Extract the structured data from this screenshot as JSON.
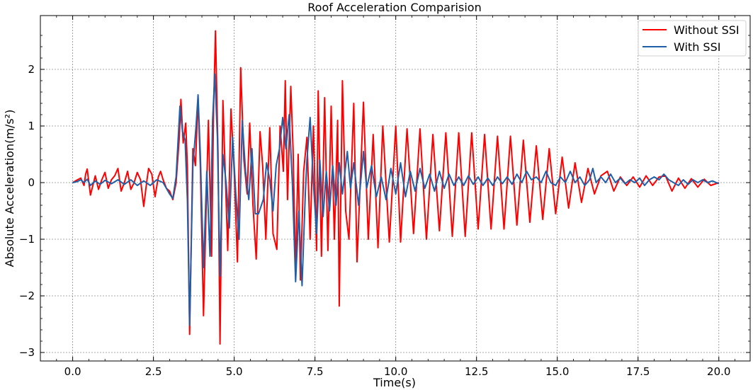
{
  "chart_data": {
    "type": "line",
    "title": "Roof Acceleration Comparision",
    "xlabel": "Time(s)",
    "ylabel": "Absolute Acceleration(m/s²)",
    "xlim": [
      -1.0,
      20.97
    ],
    "ylim": [
      -3.15,
      2.95
    ],
    "x_ticks": [
      0.0,
      2.5,
      5.0,
      7.5,
      10.0,
      12.5,
      15.0,
      17.5,
      20.0
    ],
    "x_tick_labels": [
      "0.0",
      "2.5",
      "5.0",
      "7.5",
      "10.0",
      "12.5",
      "15.0",
      "17.5",
      "20.0"
    ],
    "y_ticks": [
      -3,
      -2,
      -1,
      0,
      1,
      2
    ],
    "y_tick_labels": [
      "−3",
      "−2",
      "−1",
      "0",
      "1",
      "2"
    ],
    "grid": true,
    "legend_position": "top-right",
    "series": [
      {
        "name": "Without SSI",
        "color": "#ff0000",
        "points": [
          [
            0,
            0
          ],
          [
            0.15,
            0.05
          ],
          [
            0.25,
            0.08
          ],
          [
            0.35,
            -0.05
          ],
          [
            0.4,
            0.15
          ],
          [
            0.45,
            0.24
          ],
          [
            0.55,
            -0.22
          ],
          [
            0.7,
            0.12
          ],
          [
            0.8,
            -0.12
          ],
          [
            0.9,
            0.05
          ],
          [
            1.0,
            0.18
          ],
          [
            1.1,
            -0.1
          ],
          [
            1.2,
            0.05
          ],
          [
            1.3,
            0.12
          ],
          [
            1.4,
            0.25
          ],
          [
            1.5,
            -0.15
          ],
          [
            1.6,
            0.0
          ],
          [
            1.7,
            0.2
          ],
          [
            1.8,
            -0.12
          ],
          [
            1.9,
            0.0
          ],
          [
            2.0,
            0.18
          ],
          [
            2.1,
            0.05
          ],
          [
            2.2,
            -0.42
          ],
          [
            2.3,
            0.05
          ],
          [
            2.35,
            0.25
          ],
          [
            2.45,
            0.15
          ],
          [
            2.55,
            -0.25
          ],
          [
            2.65,
            0.1
          ],
          [
            2.72,
            0.2
          ],
          [
            2.8,
            0.05
          ],
          [
            2.9,
            -0.1
          ],
          [
            3.0,
            -0.15
          ],
          [
            3.1,
            -0.3
          ],
          [
            3.2,
            0.0
          ],
          [
            3.3,
            0.8
          ],
          [
            3.35,
            1.47
          ],
          [
            3.42,
            0.7
          ],
          [
            3.5,
            1.05
          ],
          [
            3.55,
            0.3
          ],
          [
            3.62,
            -2.68
          ],
          [
            3.72,
            0.6
          ],
          [
            3.8,
            0.3
          ],
          [
            3.88,
            1.5
          ],
          [
            3.95,
            0.3
          ],
          [
            4.05,
            -2.35
          ],
          [
            4.15,
            0.0
          ],
          [
            4.2,
            1.1
          ],
          [
            4.3,
            -1.3
          ],
          [
            4.36,
            1.3
          ],
          [
            4.42,
            2.68
          ],
          [
            4.5,
            0.5
          ],
          [
            4.56,
            -2.85
          ],
          [
            4.65,
            1.45
          ],
          [
            4.72,
            0.2
          ],
          [
            4.8,
            -1.2
          ],
          [
            4.9,
            1.3
          ],
          [
            5.0,
            0.2
          ],
          [
            5.1,
            -1.4
          ],
          [
            5.2,
            2.03
          ],
          [
            5.3,
            0.4
          ],
          [
            5.4,
            -0.2
          ],
          [
            5.48,
            1.05
          ],
          [
            5.58,
            -0.4
          ],
          [
            5.68,
            -1.35
          ],
          [
            5.8,
            0.9
          ],
          [
            5.88,
            0.3
          ],
          [
            5.98,
            -1.0
          ],
          [
            6.1,
            0.97
          ],
          [
            6.2,
            -0.9
          ],
          [
            6.32,
            -1.18
          ],
          [
            6.42,
            1.0
          ],
          [
            6.52,
            0.2
          ],
          [
            6.58,
            1.8
          ],
          [
            6.65,
            -0.3
          ],
          [
            6.75,
            1.7
          ],
          [
            6.82,
            0.6
          ],
          [
            6.9,
            -1.6
          ],
          [
            6.98,
            0.5
          ],
          [
            7.05,
            -1.72
          ],
          [
            7.15,
            0.2
          ],
          [
            7.25,
            0.8
          ],
          [
            7.35,
            -1.0
          ],
          [
            7.45,
            1.0
          ],
          [
            7.55,
            -1.2
          ],
          [
            7.6,
            1.62
          ],
          [
            7.7,
            -1.3
          ],
          [
            7.8,
            1.5
          ],
          [
            7.9,
            -1.2
          ],
          [
            8.0,
            1.35
          ],
          [
            8.1,
            -1.0
          ],
          [
            8.2,
            1.1
          ],
          [
            8.25,
            -2.18
          ],
          [
            8.35,
            1.8
          ],
          [
            8.45,
            -0.5
          ],
          [
            8.55,
            -1.0
          ],
          [
            8.7,
            1.4
          ],
          [
            8.8,
            -1.4
          ],
          [
            9.0,
            1.42
          ],
          [
            9.15,
            -1.0
          ],
          [
            9.3,
            0.85
          ],
          [
            9.45,
            -1.15
          ],
          [
            9.6,
            1.0
          ],
          [
            9.8,
            -1.05
          ],
          [
            10.0,
            1.0
          ],
          [
            10.15,
            -1.05
          ],
          [
            10.35,
            0.95
          ],
          [
            10.55,
            -0.9
          ],
          [
            10.75,
            0.95
          ],
          [
            10.95,
            -1.0
          ],
          [
            11.15,
            0.85
          ],
          [
            11.35,
            -0.85
          ],
          [
            11.55,
            0.88
          ],
          [
            11.75,
            -0.95
          ],
          [
            11.95,
            0.88
          ],
          [
            12.15,
            -0.95
          ],
          [
            12.35,
            0.88
          ],
          [
            12.55,
            -0.82
          ],
          [
            12.75,
            0.85
          ],
          [
            12.95,
            -0.82
          ],
          [
            13.15,
            0.82
          ],
          [
            13.35,
            -0.82
          ],
          [
            13.55,
            0.82
          ],
          [
            13.75,
            -0.75
          ],
          [
            13.95,
            0.75
          ],
          [
            14.15,
            -0.7
          ],
          [
            14.35,
            0.65
          ],
          [
            14.55,
            -0.65
          ],
          [
            14.75,
            0.6
          ],
          [
            14.95,
            -0.55
          ],
          [
            15.15,
            0.45
          ],
          [
            15.35,
            -0.45
          ],
          [
            15.55,
            0.35
          ],
          [
            15.75,
            -0.35
          ],
          [
            15.95,
            0.25
          ],
          [
            16.15,
            -0.2
          ],
          [
            16.35,
            0.12
          ],
          [
            16.55,
            0.2
          ],
          [
            16.75,
            -0.15
          ],
          [
            16.95,
            0.1
          ],
          [
            17.15,
            -0.05
          ],
          [
            17.35,
            0.1
          ],
          [
            17.55,
            -0.08
          ],
          [
            17.75,
            0.12
          ],
          [
            17.95,
            -0.05
          ],
          [
            18.15,
            0.1
          ],
          [
            18.35,
            0.12
          ],
          [
            18.55,
            -0.15
          ],
          [
            18.75,
            0.08
          ],
          [
            18.95,
            -0.1
          ],
          [
            19.15,
            0.07
          ],
          [
            19.35,
            -0.08
          ],
          [
            19.55,
            0.06
          ],
          [
            19.75,
            -0.05
          ],
          [
            20.0,
            0.0
          ]
        ]
      },
      {
        "name": "With SSI",
        "color": "#1f5fa8",
        "points": [
          [
            0,
            0
          ],
          [
            0.15,
            0.02
          ],
          [
            0.25,
            0.05
          ],
          [
            0.35,
            0.0
          ],
          [
            0.45,
            0.06
          ],
          [
            0.55,
            -0.05
          ],
          [
            0.7,
            0.03
          ],
          [
            0.85,
            -0.03
          ],
          [
            1.0,
            0.04
          ],
          [
            1.2,
            -0.02
          ],
          [
            1.4,
            0.05
          ],
          [
            1.6,
            -0.03
          ],
          [
            1.8,
            0.05
          ],
          [
            2.0,
            -0.05
          ],
          [
            2.2,
            0.03
          ],
          [
            2.4,
            -0.05
          ],
          [
            2.6,
            0.05
          ],
          [
            2.8,
            0.0
          ],
          [
            3.0,
            -0.2
          ],
          [
            3.1,
            -0.28
          ],
          [
            3.2,
            0.1
          ],
          [
            3.32,
            1.35
          ],
          [
            3.4,
            0.9
          ],
          [
            3.48,
            0.75
          ],
          [
            3.55,
            -0.3
          ],
          [
            3.62,
            -2.52
          ],
          [
            3.72,
            0.3
          ],
          [
            3.82,
            1.0
          ],
          [
            3.88,
            1.55
          ],
          [
            3.95,
            0.5
          ],
          [
            4.05,
            -1.5
          ],
          [
            4.15,
            0.2
          ],
          [
            4.25,
            -1.3
          ],
          [
            4.33,
            1.1
          ],
          [
            4.4,
            1.92
          ],
          [
            4.48,
            0.8
          ],
          [
            4.56,
            -1.65
          ],
          [
            4.65,
            0.5
          ],
          [
            4.75,
            0.0
          ],
          [
            4.85,
            -0.8
          ],
          [
            4.95,
            0.8
          ],
          [
            5.05,
            -0.2
          ],
          [
            5.15,
            -1.0
          ],
          [
            5.25,
            1.1
          ],
          [
            5.35,
            0.2
          ],
          [
            5.45,
            -0.3
          ],
          [
            5.55,
            0.6
          ],
          [
            5.65,
            -0.55
          ],
          [
            5.75,
            -0.55
          ],
          [
            5.9,
            -0.3
          ],
          [
            6.0,
            0.35
          ],
          [
            6.1,
            0.05
          ],
          [
            6.2,
            -0.5
          ],
          [
            6.3,
            0.3
          ],
          [
            6.4,
            0.6
          ],
          [
            6.5,
            1.15
          ],
          [
            6.6,
            0.6
          ],
          [
            6.7,
            1.2
          ],
          [
            6.8,
            0.0
          ],
          [
            6.9,
            -1.75
          ],
          [
            7.0,
            -0.5
          ],
          [
            7.1,
            -1.82
          ],
          [
            7.2,
            -0.2
          ],
          [
            7.25,
            0.4
          ],
          [
            7.35,
            1.15
          ],
          [
            7.45,
            0.0
          ],
          [
            7.55,
            -0.9
          ],
          [
            7.65,
            0.4
          ],
          [
            7.75,
            -0.6
          ],
          [
            7.85,
            0.2
          ],
          [
            7.95,
            -0.5
          ],
          [
            8.05,
            0.3
          ],
          [
            8.15,
            -0.4
          ],
          [
            8.25,
            0.35
          ],
          [
            8.35,
            -0.2
          ],
          [
            8.5,
            0.55
          ],
          [
            8.6,
            -0.1
          ],
          [
            8.7,
            0.35
          ],
          [
            8.85,
            -0.4
          ],
          [
            9.0,
            0.55
          ],
          [
            9.1,
            -0.1
          ],
          [
            9.25,
            0.3
          ],
          [
            9.4,
            -0.25
          ],
          [
            9.55,
            0.1
          ],
          [
            9.7,
            -0.3
          ],
          [
            9.85,
            0.25
          ],
          [
            10.0,
            -0.2
          ],
          [
            10.15,
            0.35
          ],
          [
            10.3,
            -0.25
          ],
          [
            10.45,
            0.2
          ],
          [
            10.6,
            -0.15
          ],
          [
            10.75,
            0.25
          ],
          [
            10.9,
            -0.1
          ],
          [
            11.05,
            0.15
          ],
          [
            11.2,
            -0.15
          ],
          [
            11.35,
            0.2
          ],
          [
            11.5,
            -0.1
          ],
          [
            11.65,
            0.15
          ],
          [
            11.8,
            -0.05
          ],
          [
            11.95,
            0.1
          ],
          [
            12.1,
            -0.05
          ],
          [
            12.25,
            0.12
          ],
          [
            12.4,
            -0.03
          ],
          [
            12.55,
            0.1
          ],
          [
            12.7,
            -0.05
          ],
          [
            12.85,
            0.08
          ],
          [
            13.0,
            -0.05
          ],
          [
            13.15,
            0.1
          ],
          [
            13.3,
            -0.02
          ],
          [
            13.45,
            0.1
          ],
          [
            13.6,
            -0.03
          ],
          [
            13.75,
            0.15
          ],
          [
            13.9,
            0.0
          ],
          [
            14.05,
            0.2
          ],
          [
            14.2,
            0.05
          ],
          [
            14.35,
            0.1
          ],
          [
            14.5,
            0.0
          ],
          [
            14.65,
            0.2
          ],
          [
            14.8,
            0.0
          ],
          [
            14.95,
            -0.05
          ],
          [
            15.1,
            0.1
          ],
          [
            15.25,
            0.0
          ],
          [
            15.4,
            0.2
          ],
          [
            15.55,
            0.0
          ],
          [
            15.7,
            0.1
          ],
          [
            15.85,
            -0.05
          ],
          [
            16.0,
            0.05
          ],
          [
            16.1,
            0.25
          ],
          [
            16.2,
            0.0
          ],
          [
            16.35,
            0.1
          ],
          [
            16.5,
            0.0
          ],
          [
            16.65,
            0.15
          ],
          [
            16.8,
            0.0
          ],
          [
            16.95,
            0.08
          ],
          [
            17.1,
            -0.02
          ],
          [
            17.25,
            0.05
          ],
          [
            17.4,
            0.0
          ],
          [
            17.55,
            0.08
          ],
          [
            17.7,
            -0.05
          ],
          [
            17.85,
            0.05
          ],
          [
            18.0,
            0.1
          ],
          [
            18.15,
            0.05
          ],
          [
            18.3,
            0.15
          ],
          [
            18.45,
            0.05
          ],
          [
            18.6,
            0.0
          ],
          [
            18.75,
            -0.05
          ],
          [
            18.9,
            0.05
          ],
          [
            19.05,
            -0.03
          ],
          [
            19.2,
            0.05
          ],
          [
            19.35,
            0.0
          ],
          [
            19.5,
            0.05
          ],
          [
            19.65,
            0.0
          ],
          [
            19.8,
            0.03
          ],
          [
            20.0,
            -0.02
          ]
        ]
      }
    ]
  }
}
